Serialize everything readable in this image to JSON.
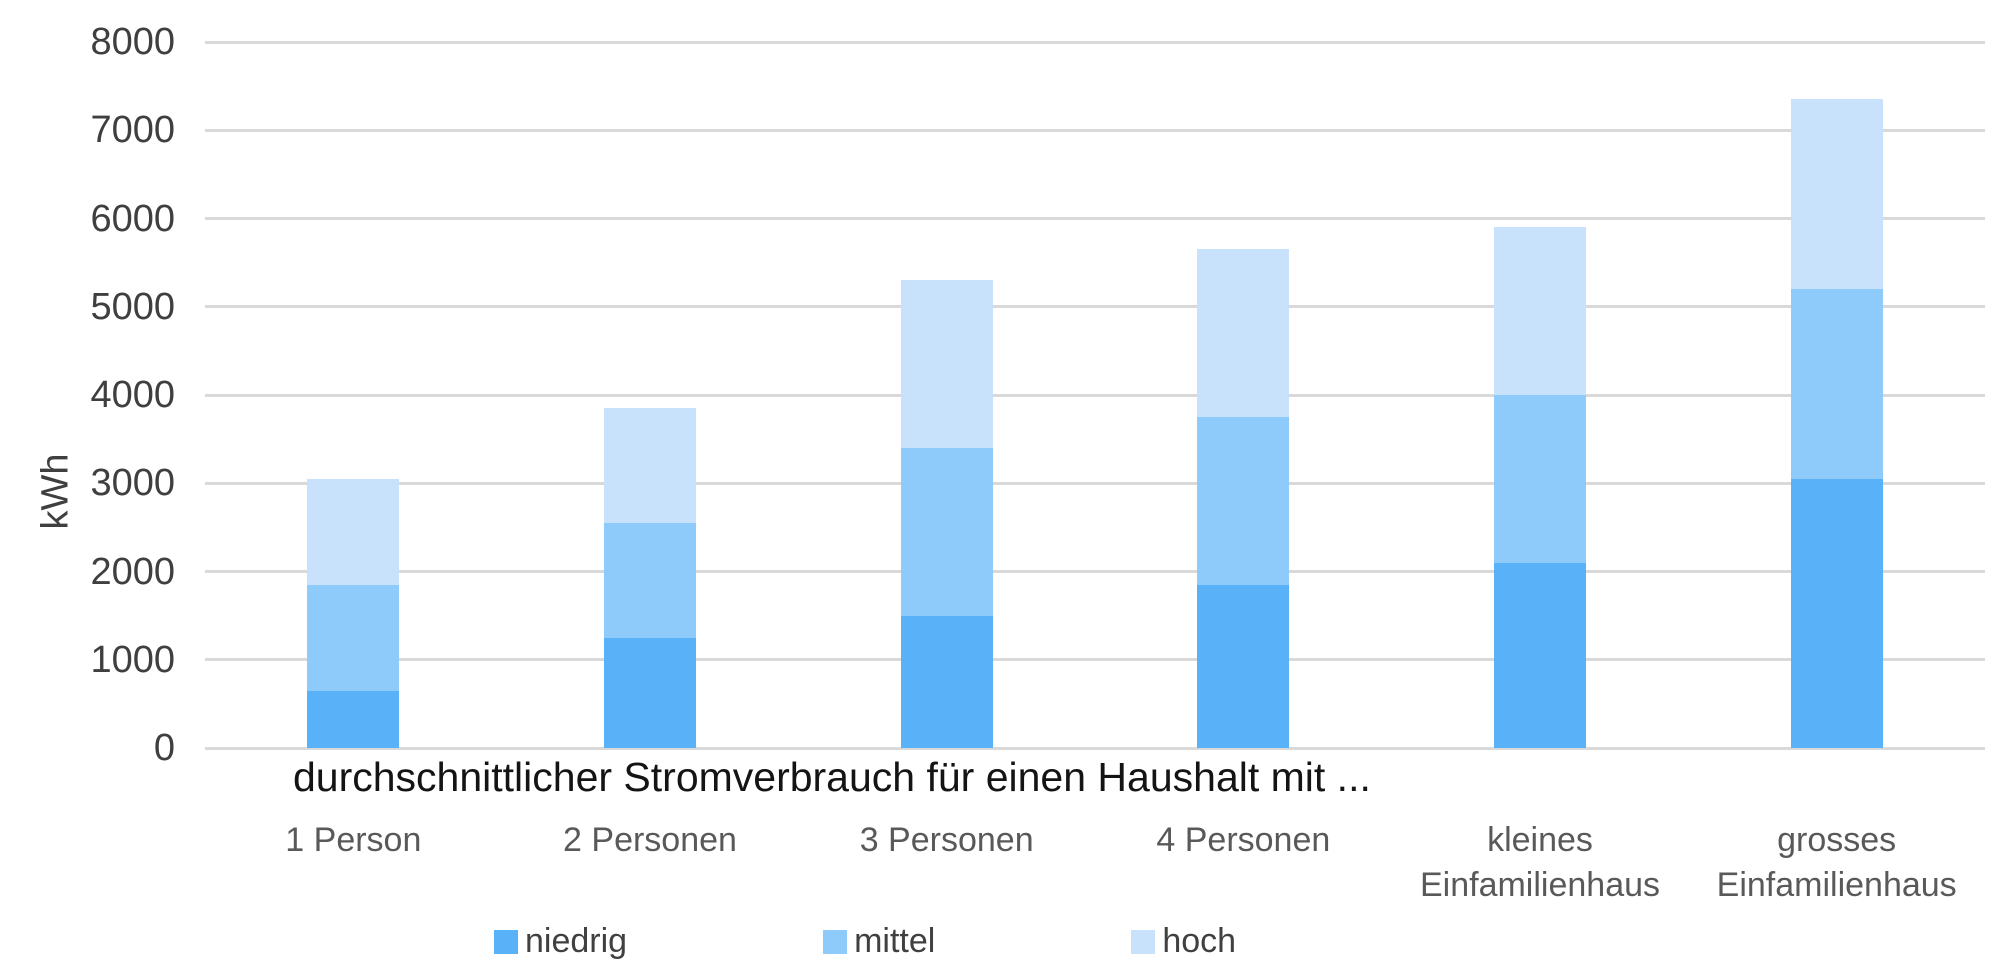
{
  "chart_data": {
    "type": "bar",
    "stacked": true,
    "title": "durchschnittlicher Stromverbrauch für einen Haushalt mit ...",
    "xlabel": "",
    "ylabel": "kWh",
    "ymin": 0,
    "ymax": 8000,
    "ytick_step": 1000,
    "yticks": [
      0,
      1000,
      2000,
      3000,
      4000,
      5000,
      6000,
      7000,
      8000
    ],
    "grid": true,
    "grid_color": "#d9d9d9",
    "legend_position": "bottom",
    "categories": [
      "1 Person",
      "2 Personen",
      "3 Personen",
      "4 Personen",
      "kleines Einfamilienhaus",
      "grosses Einfamilienhaus"
    ],
    "category_lines": [
      [
        "1 Person"
      ],
      [
        "2 Personen"
      ],
      [
        "3 Personen"
      ],
      [
        "4 Personen"
      ],
      [
        "kleines",
        "Einfamilienhaus"
      ],
      [
        "grosses",
        "Einfamilienhaus"
      ]
    ],
    "series": [
      {
        "name": "niedrig",
        "color": "#59b1f8",
        "values": [
          650,
          1250,
          1500,
          1850,
          2100,
          3050
        ]
      },
      {
        "name": "mittel",
        "color": "#8fcbfa",
        "values": [
          1200,
          1300,
          1900,
          1900,
          1900,
          2150
        ]
      },
      {
        "name": "hoch",
        "color": "#c9e2fb",
        "values": [
          1200,
          1300,
          1900,
          1900,
          1900,
          2150
        ]
      }
    ],
    "stack_totals": [
      3050,
      3850,
      5300,
      5650,
      5900,
      7350
    ],
    "axis_text_color": "#3f3f3f",
    "category_text_color": "#595959",
    "title_text_color": "#141414"
  }
}
